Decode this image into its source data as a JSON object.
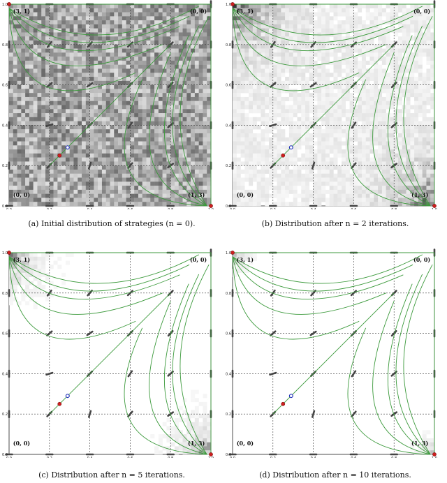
{
  "figure": {
    "panels": [
      {
        "id": "a",
        "caption": "(a) Initial distribution of strategies (n = 0).",
        "density": "uniform"
      },
      {
        "id": "b",
        "caption": "(b) Distribution after n = 2 iterations.",
        "density": "corners-mid"
      },
      {
        "id": "c",
        "caption": "(c) Distribution after n = 5 iterations.",
        "density": "corners-low"
      },
      {
        "id": "d",
        "caption": "(d) Distribution after n = 10 iterations.",
        "density": "corners-min"
      }
    ]
  },
  "chart_data": {
    "type": "scatter",
    "xlim": [
      0,
      1
    ],
    "ylim": [
      0,
      1
    ],
    "ticks": [
      "0.0",
      "0.2",
      "0.4",
      "0.6",
      "0.8",
      "1.0"
    ],
    "grid": true,
    "corner_labels": {
      "top_left": "(3, 1)",
      "top_right": "(0, 0)",
      "bottom_left": "(0, 0)",
      "bottom_right": "(1, 3)"
    },
    "stable_points": [
      {
        "x": 0.0,
        "y": 1.0
      },
      {
        "x": 1.0,
        "y": 0.0
      },
      {
        "x": 0.25,
        "y": 0.25
      }
    ],
    "unstable_points": [
      {
        "x": 0.29,
        "y": 0.29
      }
    ],
    "colors": {
      "trajectory": "#3c9a3c",
      "stable": "#cc1f1f",
      "unstable": "#2233bb",
      "arrow": "#444444"
    }
  }
}
